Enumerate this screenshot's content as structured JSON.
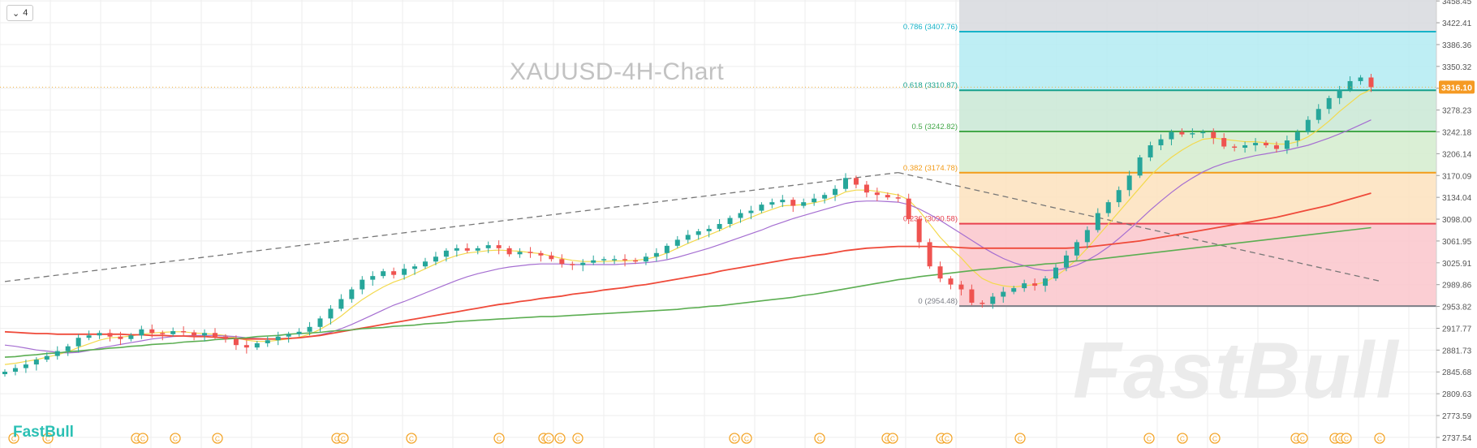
{
  "toolbar": {
    "collapse_label": "4",
    "collapse_icon": "chevron-down-icon"
  },
  "title": "XAUUSD-4H-Chart",
  "brand": "FastBull",
  "price_badge": {
    "value": "3316.10",
    "color": "#f59a23"
  },
  "colors": {
    "up": "#26a69a",
    "down": "#ef5350",
    "zone_gray": "#d7d9de",
    "zone_cyan": "#b3ebf2",
    "zone_teal": "#c9e8d5",
    "zone_green": "#d3ecce",
    "zone_orange": "#fde2bd",
    "zone_red": "#fac5cb",
    "sma_fast": "#f3d94d",
    "sma_mid": "#a56ed1",
    "sma_slow": "#ef4a3a",
    "sma_long": "#5cae52",
    "trend": "#777777",
    "event_marker": "#f3a62b"
  },
  "chart_data": {
    "type": "candlestick",
    "symbol": "XAUUSD",
    "timeframe": "4H",
    "ylim": [
      2720,
      3460
    ],
    "y_ticks": [
      "3458.45",
      "3422.41",
      "3386.36",
      "3350.32",
      "3314.27",
      "3278.23",
      "3242.18",
      "3206.14",
      "3170.09",
      "3134.04",
      "3098.00",
      "3061.95",
      "3025.91",
      "2989.86",
      "2953.82",
      "2917.77",
      "2881.73",
      "2845.68",
      "2809.63",
      "2773.59",
      "2737.54"
    ],
    "current_price": 3316.1,
    "closes": [
      2846,
      2852,
      2858,
      2866,
      2872,
      2880,
      2888,
      2902,
      2906,
      2910,
      2904,
      2900,
      2906,
      2916,
      2910,
      2908,
      2913,
      2911,
      2906,
      2910,
      2904,
      2900,
      2890,
      2886,
      2893,
      2898,
      2904,
      2908,
      2912,
      2920,
      2934,
      2950,
      2966,
      2982,
      2998,
      3004,
      3012,
      3006,
      3016,
      3020,
      3028,
      3036,
      3046,
      3050,
      3046,
      3050,
      3055,
      3050,
      3040,
      3044,
      3042,
      3038,
      3032,
      3024,
      3022,
      3026,
      3030,
      3032,
      3032,
      3030,
      3028,
      3036,
      3042,
      3054,
      3064,
      3072,
      3078,
      3082,
      3090,
      3100,
      3108,
      3112,
      3122,
      3126,
      3130,
      3120,
      3126,
      3132,
      3138,
      3148,
      3166,
      3155,
      3142,
      3138,
      3134,
      3132,
      3098,
      3060,
      3020,
      3000,
      2990,
      2982,
      2960,
      2958,
      2970,
      2978,
      2984,
      2992,
      2988,
      3000,
      3018,
      3038,
      3060,
      3080,
      3108,
      3126,
      3146,
      3170,
      3200,
      3220,
      3230,
      3242,
      3238,
      3240,
      3242,
      3232,
      3218,
      3216,
      3220,
      3224,
      3220,
      3214,
      3228,
      3242,
      3262,
      3280,
      3298,
      3312,
      3326,
      3332,
      3316
    ],
    "moving_averages": [
      {
        "values": [
          2858,
          2860,
          2863,
          2866,
          2870,
          2874,
          2879,
          2886,
          2892,
          2898,
          2902,
          2903,
          2905,
          2908,
          2910,
          2911,
          2912,
          2912,
          2910,
          2909,
          2908,
          2906,
          2902,
          2898,
          2896,
          2896,
          2898,
          2900,
          2903,
          2908,
          2916,
          2926,
          2938,
          2952,
          2965,
          2976,
          2986,
          2994,
          3000,
          3008,
          3016,
          3024,
          3032,
          3038,
          3042,
          3044,
          3046,
          3047,
          3046,
          3045,
          3043,
          3041,
          3037,
          3033,
          3030,
          3028,
          3028,
          3028,
          3029,
          3029,
          3030,
          3032,
          3036,
          3042,
          3050,
          3058,
          3065,
          3072,
          3079,
          3087,
          3094,
          3101,
          3108,
          3114,
          3120,
          3121,
          3122,
          3125,
          3129,
          3135,
          3143,
          3146,
          3146,
          3144,
          3141,
          3138,
          3130,
          3112,
          3090,
          3068,
          3050,
          3034,
          3015,
          3000,
          2992,
          2988,
          2986,
          2988,
          2990,
          2994,
          3004,
          3016,
          3032,
          3050,
          3070,
          3090,
          3110,
          3130,
          3150,
          3170,
          3186,
          3200,
          3212,
          3222,
          3230,
          3232,
          3230,
          3228,
          3226,
          3226,
          3224,
          3222,
          3222,
          3226,
          3234,
          3246,
          3260,
          3276,
          3290,
          3304,
          3312
        ]
      },
      {
        "values": [
          2890,
          2888,
          2885,
          2882,
          2880,
          2878,
          2877,
          2878,
          2881,
          2885,
          2888,
          2891,
          2894,
          2897,
          2900,
          2902,
          2904,
          2905,
          2906,
          2906,
          2906,
          2905,
          2904,
          2902,
          2901,
          2900,
          2900,
          2901,
          2902,
          2904,
          2907,
          2911,
          2917,
          2924,
          2932,
          2940,
          2948,
          2956,
          2962,
          2969,
          2976,
          2983,
          2990,
          2997,
          3003,
          3008,
          3012,
          3016,
          3019,
          3021,
          3023,
          3024,
          3024,
          3024,
          3023,
          3023,
          3023,
          3023,
          3023,
          3024,
          3025,
          3026,
          3028,
          3031,
          3035,
          3040,
          3045,
          3050,
          3056,
          3062,
          3068,
          3074,
          3080,
          3087,
          3093,
          3099,
          3104,
          3109,
          3114,
          3119,
          3124,
          3127,
          3128,
          3128,
          3127,
          3126,
          3122,
          3115,
          3106,
          3096,
          3085,
          3074,
          3063,
          3052,
          3042,
          3033,
          3026,
          3021,
          3016,
          3013,
          3014,
          3017,
          3022,
          3030,
          3040,
          3052,
          3066,
          3081,
          3097,
          3113,
          3128,
          3142,
          3155,
          3166,
          3176,
          3184,
          3190,
          3195,
          3199,
          3203,
          3206,
          3209,
          3212,
          3216,
          3220,
          3226,
          3232,
          3239,
          3246,
          3254,
          3262
        ]
      },
      {
        "values": [
          2912,
          2911,
          2910,
          2909,
          2909,
          2908,
          2908,
          2908,
          2908,
          2908,
          2908,
          2908,
          2907,
          2907,
          2906,
          2906,
          2905,
          2905,
          2904,
          2904,
          2903,
          2902,
          2901,
          2900,
          2900,
          2900,
          2900,
          2901,
          2902,
          2904,
          2906,
          2909,
          2912,
          2915,
          2918,
          2921,
          2924,
          2927,
          2930,
          2933,
          2936,
          2939,
          2942,
          2945,
          2948,
          2951,
          2954,
          2957,
          2959,
          2962,
          2964,
          2967,
          2969,
          2971,
          2974,
          2976,
          2978,
          2981,
          2983,
          2985,
          2988,
          2990,
          2993,
          2996,
          2999,
          3002,
          3005,
          3008,
          3012,
          3015,
          3018,
          3021,
          3024,
          3027,
          3030,
          3033,
          3035,
          3038,
          3040,
          3043,
          3046,
          3048,
          3050,
          3051,
          3052,
          3053,
          3053,
          3053,
          3053,
          3052,
          3052,
          3051,
          3050,
          3050,
          3050,
          3050,
          3050,
          3050,
          3050,
          3050,
          3050,
          3050,
          3051,
          3052,
          3054,
          3056,
          3058,
          3060,
          3062,
          3065,
          3068,
          3071,
          3074,
          3077,
          3080,
          3083,
          3086,
          3089,
          3092,
          3095,
          3098,
          3101,
          3105,
          3109,
          3113,
          3117,
          3121,
          3126,
          3131,
          3136,
          3141
        ]
      },
      {
        "values": [
          2870,
          2871,
          2873,
          2874,
          2876,
          2877,
          2879,
          2880,
          2882,
          2883,
          2885,
          2886,
          2888,
          2889,
          2891,
          2892,
          2893,
          2895,
          2896,
          2897,
          2899,
          2900,
          2901,
          2902,
          2904,
          2905,
          2906,
          2908,
          2909,
          2910,
          2911,
          2913,
          2914,
          2915,
          2917,
          2918,
          2919,
          2921,
          2922,
          2923,
          2925,
          2926,
          2927,
          2929,
          2930,
          2931,
          2932,
          2933,
          2934,
          2935,
          2936,
          2937,
          2937,
          2938,
          2939,
          2940,
          2941,
          2942,
          2943,
          2944,
          2945,
          2946,
          2947,
          2948,
          2949,
          2951,
          2952,
          2954,
          2955,
          2957,
          2959,
          2961,
          2963,
          2965,
          2967,
          2969,
          2972,
          2974,
          2977,
          2980,
          2983,
          2986,
          2989,
          2992,
          2995,
          2998,
          3000,
          3003,
          3005,
          3007,
          3009,
          3011,
          3013,
          3015,
          3016,
          3018,
          3019,
          3021,
          3022,
          3024,
          3025,
          3027,
          3029,
          3030,
          3032,
          3034,
          3036,
          3038,
          3040,
          3042,
          3044,
          3046,
          3048,
          3050,
          3052,
          3054,
          3056,
          3058,
          3060,
          3062,
          3064,
          3066,
          3068,
          3070,
          3072,
          3074,
          3076,
          3078,
          3080,
          3082,
          3084
        ]
      }
    ],
    "fibonacci": [
      {
        "ratio": "0.786",
        "label": "0.786 (3407.76)",
        "price": 3407.76,
        "color": "#17b3c8"
      },
      {
        "ratio": "0.618",
        "label": "0.618 (3310.87)",
        "price": 3310.87,
        "color": "#15a08c"
      },
      {
        "ratio": "0.5",
        "label": "0.5 (3242.82)",
        "price": 3242.82,
        "color": "#44a84a"
      },
      {
        "ratio": "0.382",
        "label": "0.382 (3174.78)",
        "price": 3174.78,
        "color": "#f39c19"
      },
      {
        "ratio": "0.236",
        "label": "0.236 (3090.58)",
        "price": 3090.58,
        "color": "#e8414f"
      },
      {
        "ratio": "0",
        "label": "0 (2954.48)",
        "price": 2954.48,
        "color": "#7b7e86"
      }
    ],
    "trendlines": [
      {
        "from": [
          0,
          2995
        ],
        "to": [
          85,
          3175
        ],
        "style": "dashed"
      },
      {
        "from": [
          85,
          3175
        ],
        "to": [
          131,
          2995
        ],
        "style": "dashed"
      }
    ],
    "event_marker_label": "C"
  }
}
